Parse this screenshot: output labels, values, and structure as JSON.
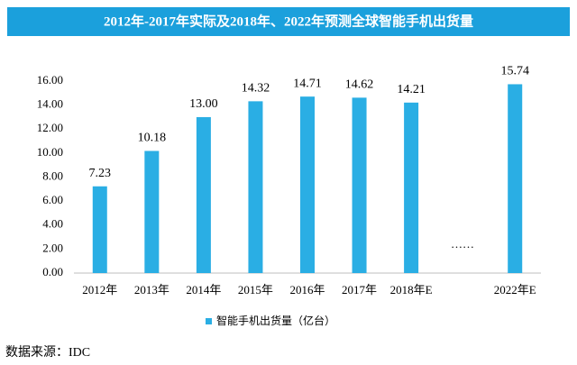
{
  "chart_data": {
    "type": "bar",
    "title": "2012年-2017年实际及2018年、2022年预测全球智能手机出货量",
    "categories": [
      "2012年",
      "2013年",
      "2014年",
      "2015年",
      "2016年",
      "2017年",
      "2018年E",
      null,
      "2022年E"
    ],
    "series": [
      {
        "name": "智能手机出货量（亿台）",
        "color": "#2aaee4",
        "values": [
          7.23,
          10.18,
          13.0,
          14.32,
          14.71,
          14.62,
          14.21,
          null,
          15.74
        ],
        "value_labels": [
          "7.23",
          "10.18",
          "13.00",
          "14.32",
          "14.71",
          "14.62",
          "14.21",
          null,
          "15.74"
        ]
      }
    ],
    "ylim": [
      0,
      16
    ],
    "yticks": [
      {
        "value": 0,
        "label": "0.00"
      },
      {
        "value": 2,
        "label": "2.00"
      },
      {
        "value": 4,
        "label": "4.00"
      },
      {
        "value": 6,
        "label": "6.00"
      },
      {
        "value": 8,
        "label": "8.00"
      },
      {
        "value": 10,
        "label": "10.00"
      },
      {
        "value": 12,
        "label": "12.00"
      },
      {
        "value": 14,
        "label": "14.00"
      },
      {
        "value": 16,
        "label": "16.00"
      }
    ],
    "grid": false,
    "legend": "bottom",
    "annotation": "……",
    "source": "数据来源：IDC"
  }
}
